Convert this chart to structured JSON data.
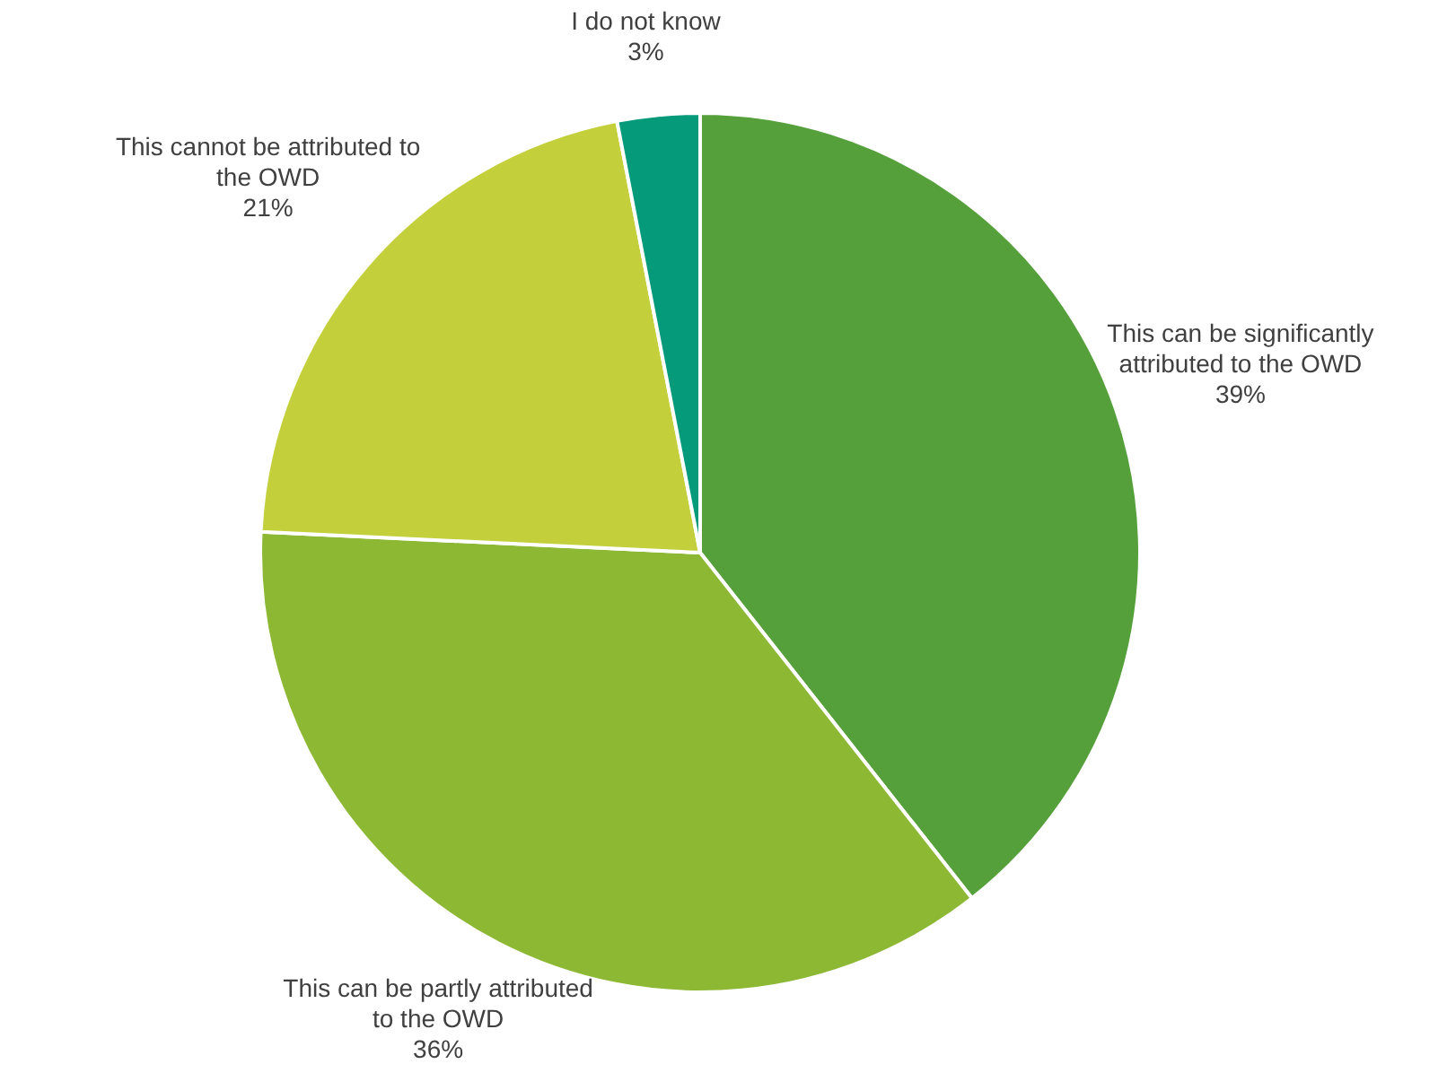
{
  "chart_data": {
    "type": "pie",
    "categories": [
      "This can be significantly attributed to the OWD",
      "This can be partly attributed to the OWD",
      "This cannot be attributed to the OWD",
      "I do not know"
    ],
    "values": [
      39,
      36,
      21,
      3
    ],
    "value_labels": [
      "39%",
      "36%",
      "21%",
      "3%"
    ],
    "colors": [
      "#55a03b",
      "#8cb834",
      "#c3d03c",
      "#049a7a"
    ],
    "legend": false
  }
}
